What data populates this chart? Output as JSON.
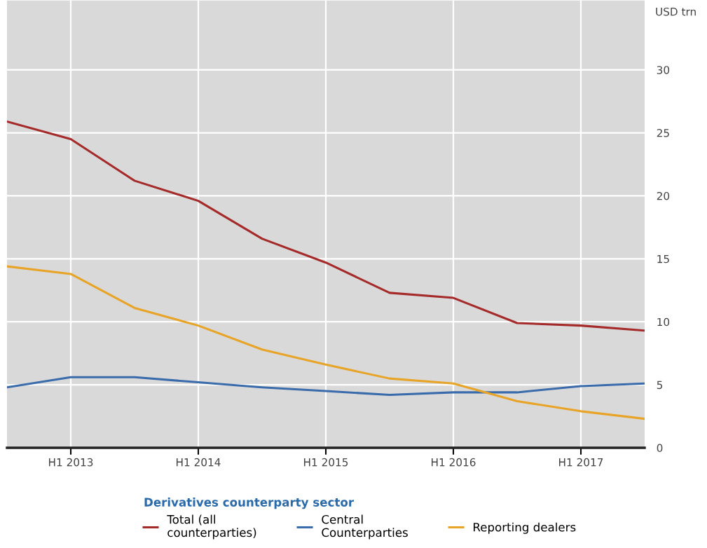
{
  "chart_data": {
    "type": "line",
    "ylabel": "USD trn",
    "legend_title": "Derivatives counterparty sector",
    "categories": [
      null,
      "H1 2013",
      null,
      "H1 2014",
      null,
      "H1 2015",
      null,
      "H1 2016",
      null,
      "H1 2017",
      null
    ],
    "series": [
      {
        "name": "Total (all\ncounterparties)",
        "color": "#a52a2a",
        "values": [
          25.9,
          24.5,
          21.2,
          19.6,
          16.6,
          14.7,
          12.3,
          11.9,
          9.9,
          9.7,
          9.3
        ]
      },
      {
        "name": "Central\nCounterparties",
        "color": "#3a6bab",
        "values": [
          4.8,
          5.6,
          5.6,
          5.2,
          4.8,
          4.5,
          4.2,
          4.4,
          4.4,
          4.9,
          5.1
        ]
      },
      {
        "name": "Reporting dealers",
        "color": "#e8a427",
        "values": [
          14.4,
          13.8,
          11.1,
          9.7,
          7.8,
          6.6,
          5.5,
          5.1,
          3.7,
          2.9,
          2.3
        ]
      }
    ],
    "ylim": [
      0,
      35.5
    ],
    "yticks": [
      0,
      5,
      10,
      15,
      20,
      25,
      30
    ],
    "grid": true,
    "legend": "bottom",
    "marker": "none",
    "line_style": "solid"
  }
}
